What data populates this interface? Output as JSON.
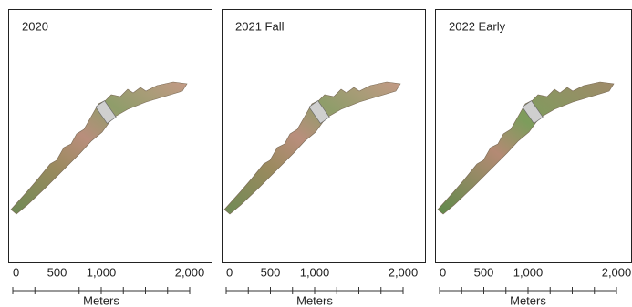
{
  "panels": [
    {
      "title": "2020",
      "scale": {
        "labels": [
          "0",
          "500",
          "1,000",
          "2,000"
        ],
        "unit": "Meters"
      }
    },
    {
      "title": "2021 Fall",
      "scale": {
        "labels": [
          "0",
          "500",
          "1,000",
          "2,000"
        ],
        "unit": "Meters"
      }
    },
    {
      "title": "2022 Early",
      "scale": {
        "labels": [
          "0",
          "500",
          "1,000",
          "2,000"
        ],
        "unit": "Meters"
      }
    }
  ]
}
